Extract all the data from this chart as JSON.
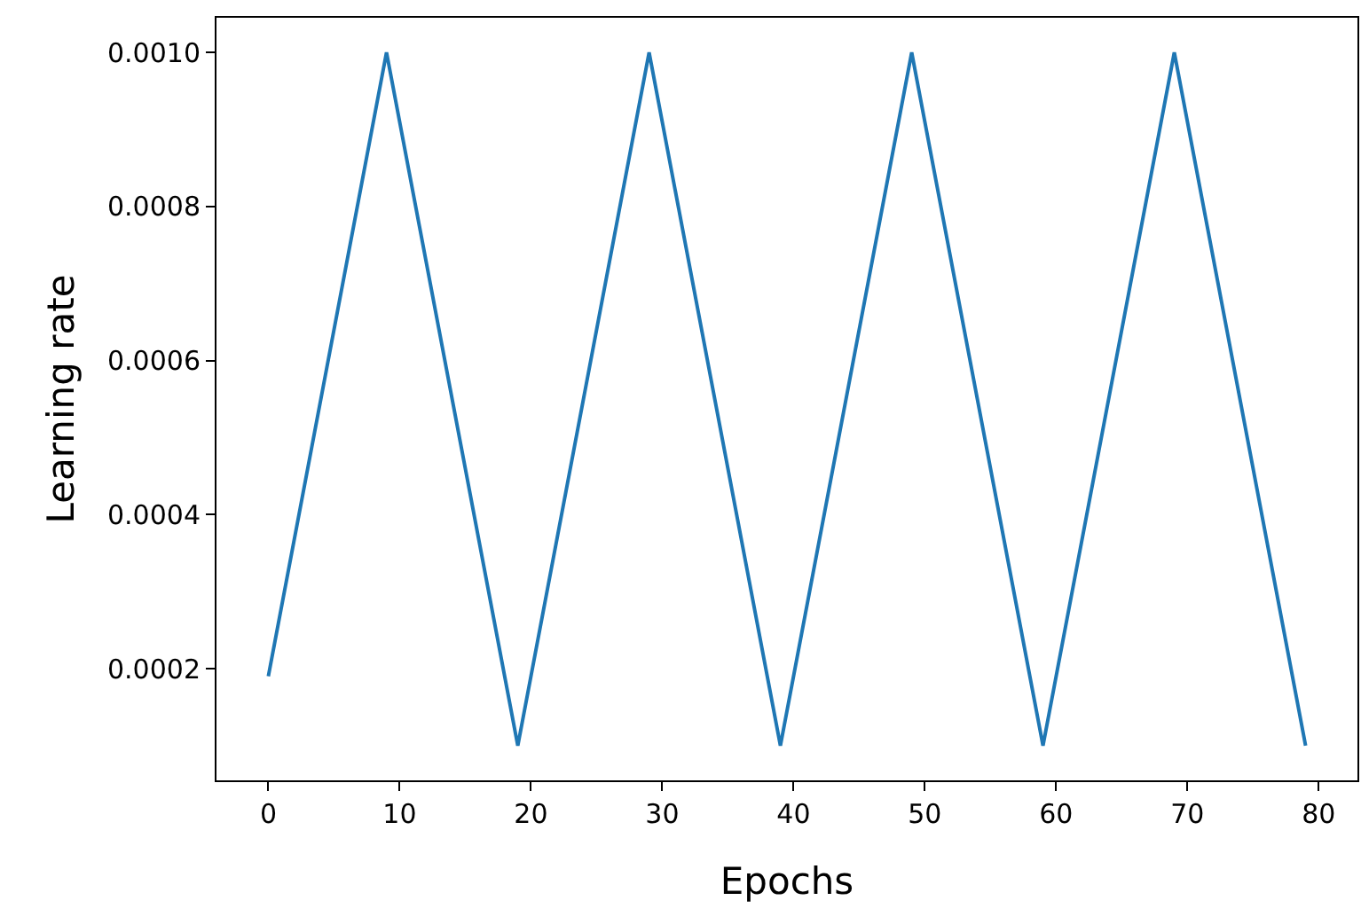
{
  "chart_data": {
    "type": "line",
    "xlabel": "Epochs",
    "ylabel": "Learning rate",
    "x": [
      0,
      9,
      19,
      29,
      39,
      49,
      59,
      69,
      79
    ],
    "series": [
      {
        "color": "#1f77b4",
        "values": [
          0.00019,
          0.001,
          0.0001,
          0.001,
          0.0001,
          0.001,
          0.0001,
          0.001,
          0.0001
        ]
      }
    ],
    "xlim": [
      -3.95,
      82.95
    ],
    "ylim": [
      5.5e-05,
      0.001045
    ],
    "xticks": [
      0,
      10,
      20,
      30,
      40,
      50,
      60,
      70,
      80
    ],
    "yticks": [
      {
        "value": 0.0002,
        "label": "0.0002"
      },
      {
        "value": 0.0004,
        "label": "0.0004"
      },
      {
        "value": 0.0006,
        "label": "0.0006"
      },
      {
        "value": 0.0008,
        "label": "0.0008"
      },
      {
        "value": 0.001,
        "label": "0.0010"
      }
    ],
    "legend": false,
    "marker": "none",
    "line_style": "solid"
  }
}
